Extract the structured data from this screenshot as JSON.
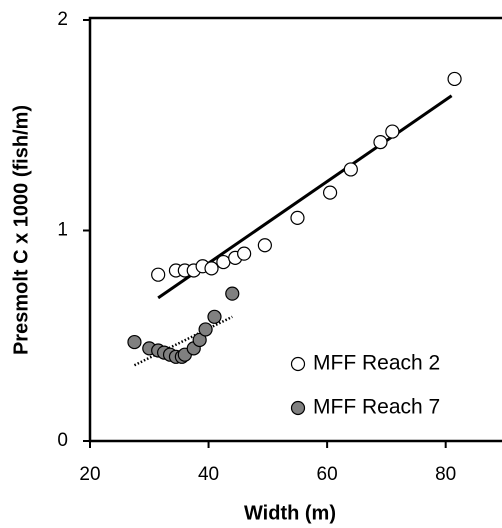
{
  "chart_data": {
    "type": "scatter",
    "x_label": "Width (m)",
    "y_label": "Presmolt C x 1000 (fish/m)",
    "xlim": [
      20,
      89.5
    ],
    "xticks": [
      20,
      40,
      60,
      80
    ],
    "ylim": [
      0,
      2
    ],
    "yticks": [
      0,
      1,
      2
    ],
    "legend": "lower right",
    "series": [
      {
        "name": "MFF Reach 2",
        "color": "#ffffff",
        "x": [
          31.5,
          34.5,
          36,
          37.5,
          39,
          40.5,
          42.5,
          44.5,
          46,
          49.5,
          55,
          60.5,
          64,
          69,
          71,
          81.5
        ],
        "values": [
          0.79,
          0.81,
          0.81,
          0.81,
          0.83,
          0.82,
          0.85,
          0.87,
          0.89,
          0.93,
          1.06,
          1.18,
          1.29,
          1.42,
          1.47,
          1.72
        ],
        "trend": {
          "style": "solid",
          "x": [
            31.5,
            81
          ],
          "y": [
            0.68,
            1.64
          ]
        }
      },
      {
        "name": "MFF Reach 7",
        "color": "#808080",
        "x": [
          27.5,
          30,
          31.5,
          32.5,
          33.5,
          34.5,
          35.5,
          36,
          37.5,
          38.5,
          39.5,
          41,
          44
        ],
        "values": [
          0.47,
          0.44,
          0.43,
          0.42,
          0.41,
          0.4,
          0.4,
          0.41,
          0.44,
          0.48,
          0.53,
          0.59,
          0.7
        ],
        "trend": {
          "style": "dotted",
          "x": [
            27.5,
            44
          ],
          "y": [
            0.36,
            0.59
          ]
        }
      }
    ]
  }
}
